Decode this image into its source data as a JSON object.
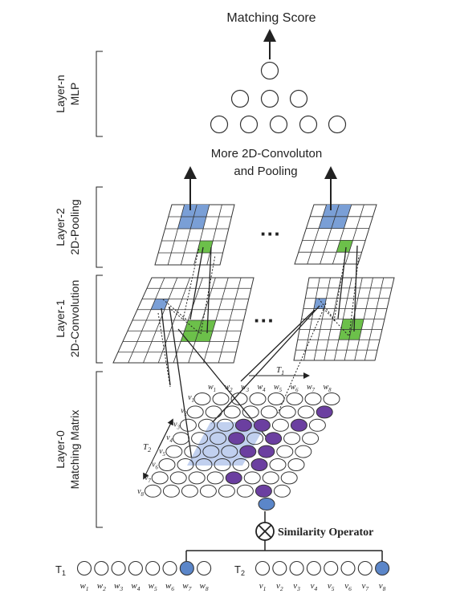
{
  "title": "Matching Score",
  "conv_note_line1": "More 2D-Convoluton",
  "conv_note_line2": "and Pooling",
  "layers": [
    {
      "line1": "Layer-n",
      "line2": "MLP"
    },
    {
      "line1": "Layer-2",
      "line2": "2D-Pooling"
    },
    {
      "line1": "Layer-1",
      "line2": "2D-Convolution"
    },
    {
      "line1": "Layer-0",
      "line2": "Matching Matrix"
    }
  ],
  "ellipsis": "···",
  "similarity_operator": "Similarity Operator",
  "operator_symbol": "⊗",
  "t1_label": "T",
  "t1_sub": "1",
  "t2_label": "T",
  "t2_sub": "2",
  "t1_words": [
    "w1",
    "w2",
    "w3",
    "w4",
    "w5",
    "w6",
    "w7",
    "w8"
  ],
  "t2_words": [
    "v1",
    "v2",
    "v3",
    "v4",
    "v5",
    "v6",
    "v7",
    "v8"
  ],
  "matrix_t1_label": "T1",
  "matrix_t2_label": "T2",
  "colors": {
    "blue_node": "#5b86c9",
    "purple_node": "#6b3fa0",
    "pool_blue": "#7a9fd6",
    "conv_green": "#6cc04a",
    "region_blue": "#b6c8ec",
    "line": "#222222"
  }
}
